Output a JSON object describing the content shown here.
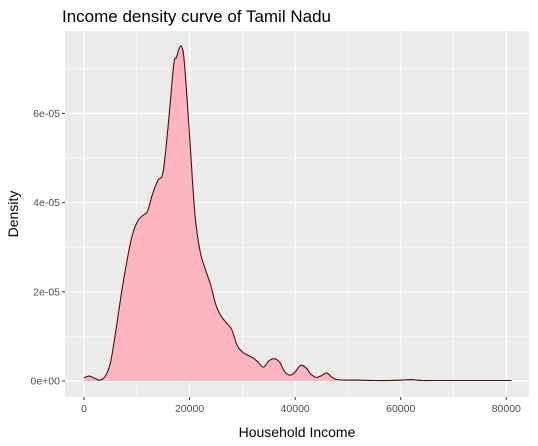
{
  "chart_data": {
    "type": "area",
    "title": "Income density curve of Tamil Nadu",
    "xlabel": "Household Income",
    "ylabel": "Density",
    "xlim": [
      -3600,
      84300
    ],
    "ylim": [
      -3.6e-06,
      7.85e-05
    ],
    "x_ticks": [
      0,
      20000,
      40000,
      60000,
      80000
    ],
    "x_tick_labels": [
      "0",
      "20000",
      "40000",
      "60000",
      "80000"
    ],
    "y_ticks": [
      0,
      2e-05,
      4e-05,
      6e-05
    ],
    "y_tick_labels": [
      "0e+00",
      "2e-05",
      "4e-05",
      "6e-05"
    ],
    "grid": true,
    "colors": {
      "panel_background": "#EBEBEB",
      "grid": "#FFFFFF",
      "fill": "#FFB6C1",
      "line": "#4A0E0E"
    },
    "series": [
      {
        "x": [
          0,
          1000,
          2000,
          3000,
          4000,
          5000,
          6000,
          7000,
          8000,
          9000,
          10000,
          11000,
          12000,
          13000,
          14000,
          15000,
          16000,
          17000,
          17500,
          18000,
          18500,
          19000,
          20000,
          21000,
          22000,
          23000,
          24000,
          25000,
          26000,
          27000,
          28000,
          29000,
          30000,
          31000,
          32000,
          33000,
          34000,
          35000,
          36000,
          37000,
          38000,
          39000,
          40000,
          41000,
          42000,
          43000,
          44000,
          45000,
          46000,
          47000,
          48000,
          50000,
          52000,
          55000,
          58000,
          60000,
          62000,
          63000,
          64000,
          66000,
          70000,
          75000,
          80000,
          81000
        ],
        "y": [
          7e-07,
          1.1e-06,
          6e-07,
          2e-07,
          1e-06,
          4e-06,
          1.1e-05,
          1.9e-05,
          2.6e-05,
          3.2e-05,
          3.55e-05,
          3.7e-05,
          3.8e-05,
          4.2e-05,
          4.5e-05,
          4.7e-05,
          5.8e-05,
          7.1e-05,
          7.25e-05,
          7.45e-05,
          7.5e-05,
          7.15e-05,
          5.5e-05,
          3.75e-05,
          2.9e-05,
          2.5e-05,
          2.15e-05,
          1.7e-05,
          1.45e-05,
          1.3e-05,
          1.15e-05,
          8e-06,
          6.5e-06,
          5.8e-06,
          5.2e-06,
          4.2e-06,
          3.1e-06,
          4.5e-06,
          5e-06,
          4.3e-06,
          2.1e-06,
          1.3e-06,
          2e-06,
          3.5e-06,
          3e-06,
          1.5e-06,
          8e-07,
          1.2e-06,
          1.8e-06,
          8e-07,
          3e-07,
          2e-07,
          2e-07,
          1e-07,
          1e-07,
          2e-07,
          3e-07,
          2e-07,
          1e-07,
          1e-07,
          1e-07,
          1e-07,
          1e-07,
          1e-07
        ]
      }
    ]
  }
}
